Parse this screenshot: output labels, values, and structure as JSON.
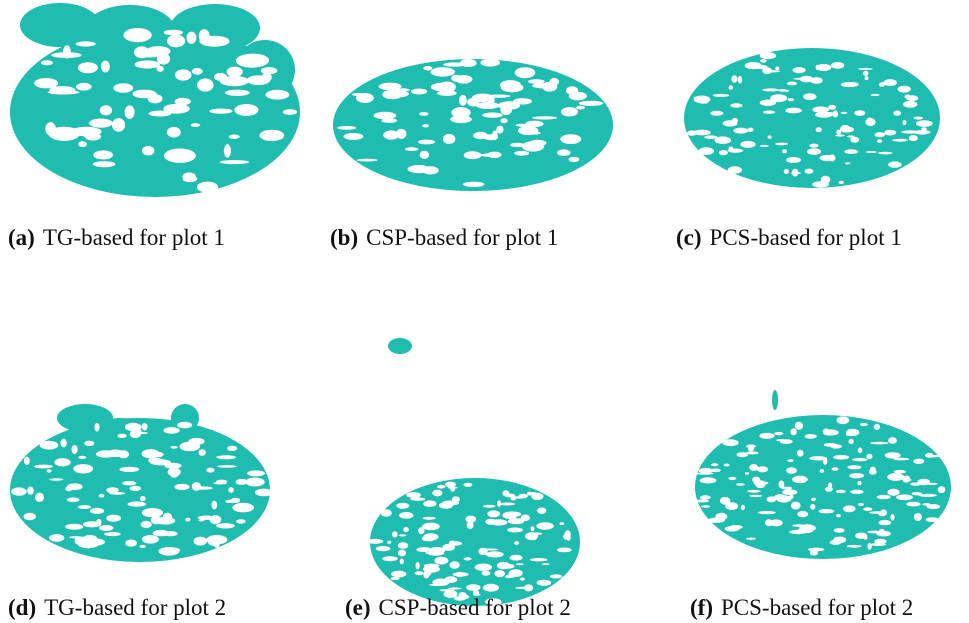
{
  "panels": [
    {
      "label": "(a)",
      "caption": "TG-based for plot 1"
    },
    {
      "label": "(b)",
      "caption": "CSP-based for plot 1"
    },
    {
      "label": "(c)",
      "caption": "PCS-based for plot 1"
    },
    {
      "label": "(d)",
      "caption": "TG-based for plot 2"
    },
    {
      "label": "(e)",
      "caption": "CSP-based for plot 2"
    },
    {
      "label": "(f)",
      "caption": "PCS-based for plot 2"
    }
  ]
}
